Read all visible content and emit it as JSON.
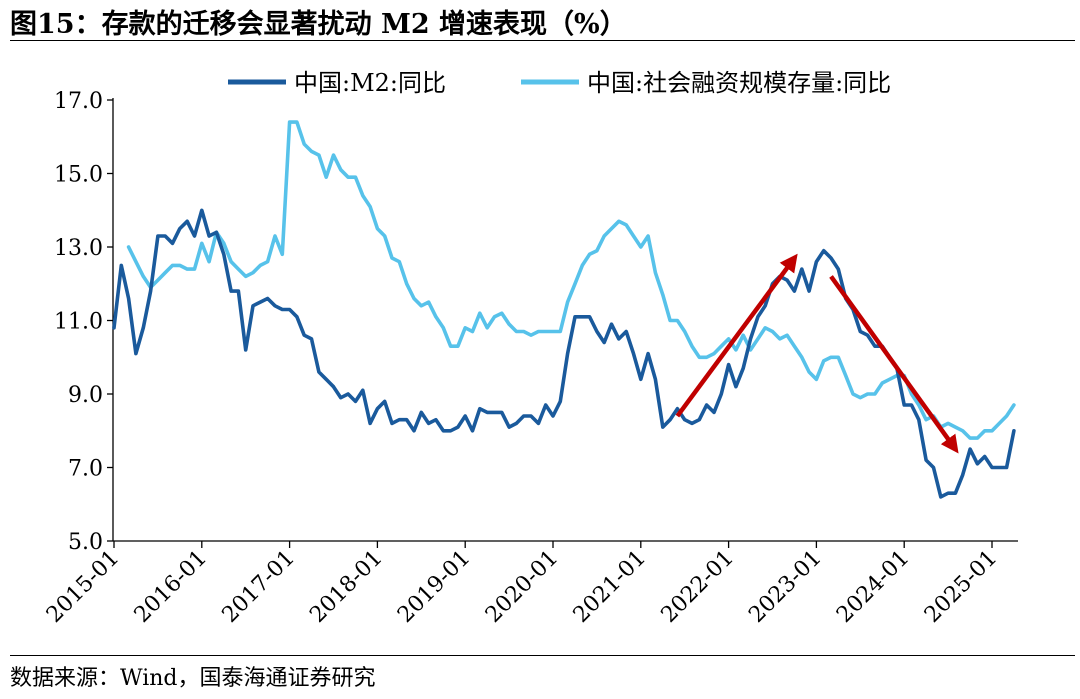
{
  "title": "图15：存款的迁移会显著扰动 M2 增速表现（%）",
  "source": "数据来源：Wind，国泰海通证券研究",
  "chart_data": {
    "type": "line",
    "title": "图15：存款的迁移会显著扰动 M2 增速表现（%）",
    "xlabel": "",
    "ylabel": "",
    "ylim": [
      5.0,
      17.0
    ],
    "yticks": [
      "5.0",
      "7.0",
      "9.0",
      "11.0",
      "13.0",
      "15.0",
      "17.0"
    ],
    "xticks": [
      "2015-01",
      "2016-01",
      "2017-01",
      "2018-01",
      "2019-01",
      "2020-01",
      "2021-01",
      "2022-01",
      "2023-01",
      "2024-01",
      "2025-01"
    ],
    "x_range": [
      "2015-01",
      "2025-04"
    ],
    "grid": false,
    "legend_position": "top",
    "colors": {
      "m2": "#1a5a9c",
      "tsf": "#57c2ea",
      "arrow": "#c00000"
    },
    "series": [
      {
        "name": "中国:M2:同比",
        "points": [
          [
            "2015-01",
            10.8
          ],
          [
            "2015-02",
            12.5
          ],
          [
            "2015-03",
            11.6
          ],
          [
            "2015-04",
            10.1
          ],
          [
            "2015-05",
            10.8
          ],
          [
            "2015-06",
            11.8
          ],
          [
            "2015-07",
            13.3
          ],
          [
            "2015-08",
            13.3
          ],
          [
            "2015-09",
            13.1
          ],
          [
            "2015-10",
            13.5
          ],
          [
            "2015-11",
            13.7
          ],
          [
            "2015-12",
            13.3
          ],
          [
            "2016-01",
            14.0
          ],
          [
            "2016-02",
            13.3
          ],
          [
            "2016-03",
            13.4
          ],
          [
            "2016-04",
            12.8
          ],
          [
            "2016-05",
            11.8
          ],
          [
            "2016-06",
            11.8
          ],
          [
            "2016-07",
            10.2
          ],
          [
            "2016-08",
            11.4
          ],
          [
            "2016-09",
            11.5
          ],
          [
            "2016-10",
            11.6
          ],
          [
            "2016-11",
            11.4
          ],
          [
            "2016-12",
            11.3
          ],
          [
            "2017-01",
            11.3
          ],
          [
            "2017-02",
            11.1
          ],
          [
            "2017-03",
            10.6
          ],
          [
            "2017-04",
            10.5
          ],
          [
            "2017-05",
            9.6
          ],
          [
            "2017-06",
            9.4
          ],
          [
            "2017-07",
            9.2
          ],
          [
            "2017-08",
            8.9
          ],
          [
            "2017-09",
            9.0
          ],
          [
            "2017-10",
            8.8
          ],
          [
            "2017-11",
            9.1
          ],
          [
            "2017-12",
            8.2
          ],
          [
            "2018-01",
            8.6
          ],
          [
            "2018-02",
            8.8
          ],
          [
            "2018-03",
            8.2
          ],
          [
            "2018-04",
            8.3
          ],
          [
            "2018-05",
            8.3
          ],
          [
            "2018-06",
            8.0
          ],
          [
            "2018-07",
            8.5
          ],
          [
            "2018-08",
            8.2
          ],
          [
            "2018-09",
            8.3
          ],
          [
            "2018-10",
            8.0
          ],
          [
            "2018-11",
            8.0
          ],
          [
            "2018-12",
            8.1
          ],
          [
            "2019-01",
            8.4
          ],
          [
            "2019-02",
            8.0
          ],
          [
            "2019-03",
            8.6
          ],
          [
            "2019-04",
            8.5
          ],
          [
            "2019-05",
            8.5
          ],
          [
            "2019-06",
            8.5
          ],
          [
            "2019-07",
            8.1
          ],
          [
            "2019-08",
            8.2
          ],
          [
            "2019-09",
            8.4
          ],
          [
            "2019-10",
            8.4
          ],
          [
            "2019-11",
            8.2
          ],
          [
            "2019-12",
            8.7
          ],
          [
            "2020-01",
            8.4
          ],
          [
            "2020-02",
            8.8
          ],
          [
            "2020-03",
            10.1
          ],
          [
            "2020-04",
            11.1
          ],
          [
            "2020-05",
            11.1
          ],
          [
            "2020-06",
            11.1
          ],
          [
            "2020-07",
            10.7
          ],
          [
            "2020-08",
            10.4
          ],
          [
            "2020-09",
            10.9
          ],
          [
            "2020-10",
            10.5
          ],
          [
            "2020-11",
            10.7
          ],
          [
            "2020-12",
            10.1
          ],
          [
            "2021-01",
            9.4
          ],
          [
            "2021-02",
            10.1
          ],
          [
            "2021-03",
            9.4
          ],
          [
            "2021-04",
            8.1
          ],
          [
            "2021-05",
            8.3
          ],
          [
            "2021-06",
            8.6
          ],
          [
            "2021-07",
            8.3
          ],
          [
            "2021-08",
            8.2
          ],
          [
            "2021-09",
            8.3
          ],
          [
            "2021-10",
            8.7
          ],
          [
            "2021-11",
            8.5
          ],
          [
            "2021-12",
            9.0
          ],
          [
            "2022-01",
            9.8
          ],
          [
            "2022-02",
            9.2
          ],
          [
            "2022-03",
            9.7
          ],
          [
            "2022-04",
            10.5
          ],
          [
            "2022-05",
            11.1
          ],
          [
            "2022-06",
            11.4
          ],
          [
            "2022-07",
            12.0
          ],
          [
            "2022-08",
            12.2
          ],
          [
            "2022-09",
            12.1
          ],
          [
            "2022-10",
            11.8
          ],
          [
            "2022-11",
            12.4
          ],
          [
            "2022-12",
            11.8
          ],
          [
            "2023-01",
            12.6
          ],
          [
            "2023-02",
            12.9
          ],
          [
            "2023-03",
            12.7
          ],
          [
            "2023-04",
            12.4
          ],
          [
            "2023-05",
            11.6
          ],
          [
            "2023-06",
            11.3
          ],
          [
            "2023-07",
            10.7
          ],
          [
            "2023-08",
            10.6
          ],
          [
            "2023-09",
            10.3
          ],
          [
            "2023-10",
            10.3
          ],
          [
            "2023-11",
            10.0
          ],
          [
            "2023-12",
            9.7
          ],
          [
            "2024-01",
            8.7
          ],
          [
            "2024-02",
            8.7
          ],
          [
            "2024-03",
            8.3
          ],
          [
            "2024-04",
            7.2
          ],
          [
            "2024-05",
            7.0
          ],
          [
            "2024-06",
            6.2
          ],
          [
            "2024-07",
            6.3
          ],
          [
            "2024-08",
            6.3
          ],
          [
            "2024-09",
            6.8
          ],
          [
            "2024-10",
            7.5
          ],
          [
            "2024-11",
            7.1
          ],
          [
            "2024-12",
            7.3
          ],
          [
            "2025-01",
            7.0
          ],
          [
            "2025-02",
            7.0
          ],
          [
            "2025-03",
            7.0
          ],
          [
            "2025-04",
            8.0
          ]
        ]
      },
      {
        "name": "中国:社会融资规模存量:同比",
        "points": [
          [
            "2015-03",
            13.0
          ],
          [
            "2015-04",
            12.6
          ],
          [
            "2015-05",
            12.2
          ],
          [
            "2015-06",
            11.9
          ],
          [
            "2015-07",
            12.1
          ],
          [
            "2015-08",
            12.3
          ],
          [
            "2015-09",
            12.5
          ],
          [
            "2015-10",
            12.5
          ],
          [
            "2015-11",
            12.4
          ],
          [
            "2015-12",
            12.4
          ],
          [
            "2016-01",
            13.1
          ],
          [
            "2016-02",
            12.6
          ],
          [
            "2016-03",
            13.4
          ],
          [
            "2016-04",
            13.1
          ],
          [
            "2016-05",
            12.6
          ],
          [
            "2016-06",
            12.4
          ],
          [
            "2016-07",
            12.2
          ],
          [
            "2016-08",
            12.3
          ],
          [
            "2016-09",
            12.5
          ],
          [
            "2016-10",
            12.6
          ],
          [
            "2016-11",
            13.3
          ],
          [
            "2016-12",
            12.8
          ],
          [
            "2017-01",
            16.4
          ],
          [
            "2017-02",
            16.4
          ],
          [
            "2017-03",
            15.8
          ],
          [
            "2017-04",
            15.6
          ],
          [
            "2017-05",
            15.5
          ],
          [
            "2017-06",
            14.9
          ],
          [
            "2017-07",
            15.5
          ],
          [
            "2017-08",
            15.1
          ],
          [
            "2017-09",
            14.9
          ],
          [
            "2017-10",
            14.9
          ],
          [
            "2017-11",
            14.4
          ],
          [
            "2017-12",
            14.1
          ],
          [
            "2018-01",
            13.5
          ],
          [
            "2018-02",
            13.3
          ],
          [
            "2018-03",
            12.7
          ],
          [
            "2018-04",
            12.6
          ],
          [
            "2018-05",
            12.0
          ],
          [
            "2018-06",
            11.6
          ],
          [
            "2018-07",
            11.4
          ],
          [
            "2018-08",
            11.5
          ],
          [
            "2018-09",
            11.1
          ],
          [
            "2018-10",
            10.8
          ],
          [
            "2018-11",
            10.3
          ],
          [
            "2018-12",
            10.3
          ],
          [
            "2019-01",
            10.8
          ],
          [
            "2019-02",
            10.7
          ],
          [
            "2019-03",
            11.2
          ],
          [
            "2019-04",
            10.8
          ],
          [
            "2019-05",
            11.1
          ],
          [
            "2019-06",
            11.2
          ],
          [
            "2019-07",
            10.9
          ],
          [
            "2019-08",
            10.7
          ],
          [
            "2019-09",
            10.7
          ],
          [
            "2019-10",
            10.6
          ],
          [
            "2019-11",
            10.7
          ],
          [
            "2019-12",
            10.7
          ],
          [
            "2020-01",
            10.7
          ],
          [
            "2020-02",
            10.7
          ],
          [
            "2020-03",
            11.5
          ],
          [
            "2020-04",
            12.0
          ],
          [
            "2020-05",
            12.5
          ],
          [
            "2020-06",
            12.8
          ],
          [
            "2020-07",
            12.9
          ],
          [
            "2020-08",
            13.3
          ],
          [
            "2020-09",
            13.5
          ],
          [
            "2020-10",
            13.7
          ],
          [
            "2020-11",
            13.6
          ],
          [
            "2020-12",
            13.3
          ],
          [
            "2021-01",
            13.0
          ],
          [
            "2021-02",
            13.3
          ],
          [
            "2021-03",
            12.3
          ],
          [
            "2021-04",
            11.7
          ],
          [
            "2021-05",
            11.0
          ],
          [
            "2021-06",
            11.0
          ],
          [
            "2021-07",
            10.7
          ],
          [
            "2021-08",
            10.3
          ],
          [
            "2021-09",
            10.0
          ],
          [
            "2021-10",
            10.0
          ],
          [
            "2021-11",
            10.1
          ],
          [
            "2021-12",
            10.3
          ],
          [
            "2022-01",
            10.5
          ],
          [
            "2022-02",
            10.2
          ],
          [
            "2022-03",
            10.6
          ],
          [
            "2022-04",
            10.2
          ],
          [
            "2022-05",
            10.5
          ],
          [
            "2022-06",
            10.8
          ],
          [
            "2022-07",
            10.7
          ],
          [
            "2022-08",
            10.5
          ],
          [
            "2022-09",
            10.6
          ],
          [
            "2022-10",
            10.3
          ],
          [
            "2022-11",
            10.0
          ],
          [
            "2022-12",
            9.6
          ],
          [
            "2023-01",
            9.4
          ],
          [
            "2023-02",
            9.9
          ],
          [
            "2023-03",
            10.0
          ],
          [
            "2023-04",
            10.0
          ],
          [
            "2023-05",
            9.5
          ],
          [
            "2023-06",
            9.0
          ],
          [
            "2023-07",
            8.9
          ],
          [
            "2023-08",
            9.0
          ],
          [
            "2023-09",
            9.0
          ],
          [
            "2023-10",
            9.3
          ],
          [
            "2023-11",
            9.4
          ],
          [
            "2023-12",
            9.5
          ],
          [
            "2024-01",
            9.5
          ],
          [
            "2024-02",
            9.0
          ],
          [
            "2024-03",
            8.7
          ],
          [
            "2024-04",
            8.3
          ],
          [
            "2024-05",
            8.4
          ],
          [
            "2024-06",
            8.1
          ],
          [
            "2024-07",
            8.2
          ],
          [
            "2024-08",
            8.1
          ],
          [
            "2024-09",
            8.0
          ],
          [
            "2024-10",
            7.8
          ],
          [
            "2024-11",
            7.8
          ],
          [
            "2024-12",
            8.0
          ],
          [
            "2025-01",
            8.0
          ],
          [
            "2025-02",
            8.2
          ],
          [
            "2025-03",
            8.4
          ],
          [
            "2025-04",
            8.7
          ]
        ]
      }
    ],
    "annotations": [
      {
        "type": "arrow",
        "from": [
          "2021-06",
          8.4
        ],
        "to": [
          "2022-10",
          12.7
        ]
      },
      {
        "type": "arrow",
        "from": [
          "2023-03",
          12.2
        ],
        "to": [
          "2024-08",
          7.5
        ]
      }
    ]
  }
}
